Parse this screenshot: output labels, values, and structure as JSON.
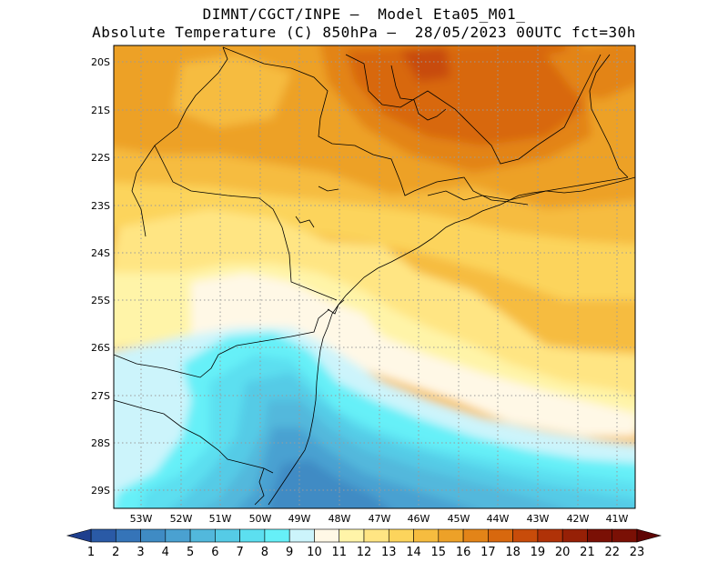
{
  "header": {
    "line1": "DIMNT/CGCT/INPE –  Model Eta05_M01_",
    "line2": "Absolute Temperature (C) 850hPa –  28/05/2023 00UTC fct=30h"
  },
  "axes": {
    "lat_labels": [
      "20S",
      "21S",
      "22S",
      "23S",
      "24S",
      "25S",
      "26S",
      "27S",
      "28S",
      "29S"
    ],
    "lon_labels": [
      "53W",
      "52W",
      "51W",
      "50W",
      "49W",
      "48W",
      "47W",
      "46W",
      "45W",
      "44W",
      "43W",
      "42W",
      "41W"
    ]
  },
  "colorbar": {
    "labels": [
      "1",
      "2",
      "3",
      "4",
      "5",
      "6",
      "7",
      "8",
      "9",
      "10",
      "11",
      "12",
      "13",
      "14",
      "15",
      "16",
      "17",
      "18",
      "19",
      "20",
      "21",
      "22",
      "23"
    ],
    "colors": [
      "#1f3f8e",
      "#2a5aa6",
      "#3574b8",
      "#3f8bc4",
      "#4aa1d1",
      "#52b8dc",
      "#55cbe6",
      "#5cdff0",
      "#66f0f8",
      "#ccf4fb",
      "#fff8e6",
      "#fff4a8",
      "#ffe583",
      "#fcd45c",
      "#f6bc3f",
      "#eda128",
      "#e38418",
      "#d8680e",
      "#c84c0a",
      "#b03208",
      "#962006",
      "#7a1005",
      "#5e0504"
    ]
  },
  "chart_data": {
    "type": "heatmap",
    "title": "Absolute Temperature (C) 850hPa",
    "model": "Eta05_M01_",
    "run": "28/05/2023 00UTC",
    "forecast": "fct=30h",
    "units": "C",
    "lon_range": [
      -53.5,
      -40.5
    ],
    "lat_range": [
      -29.4,
      -19.8
    ],
    "levels": [
      1,
      2,
      3,
      4,
      5,
      6,
      7,
      8,
      9,
      10,
      11,
      12,
      13,
      14,
      15,
      16,
      17,
      18,
      19,
      20,
      21,
      22,
      23
    ]
  }
}
